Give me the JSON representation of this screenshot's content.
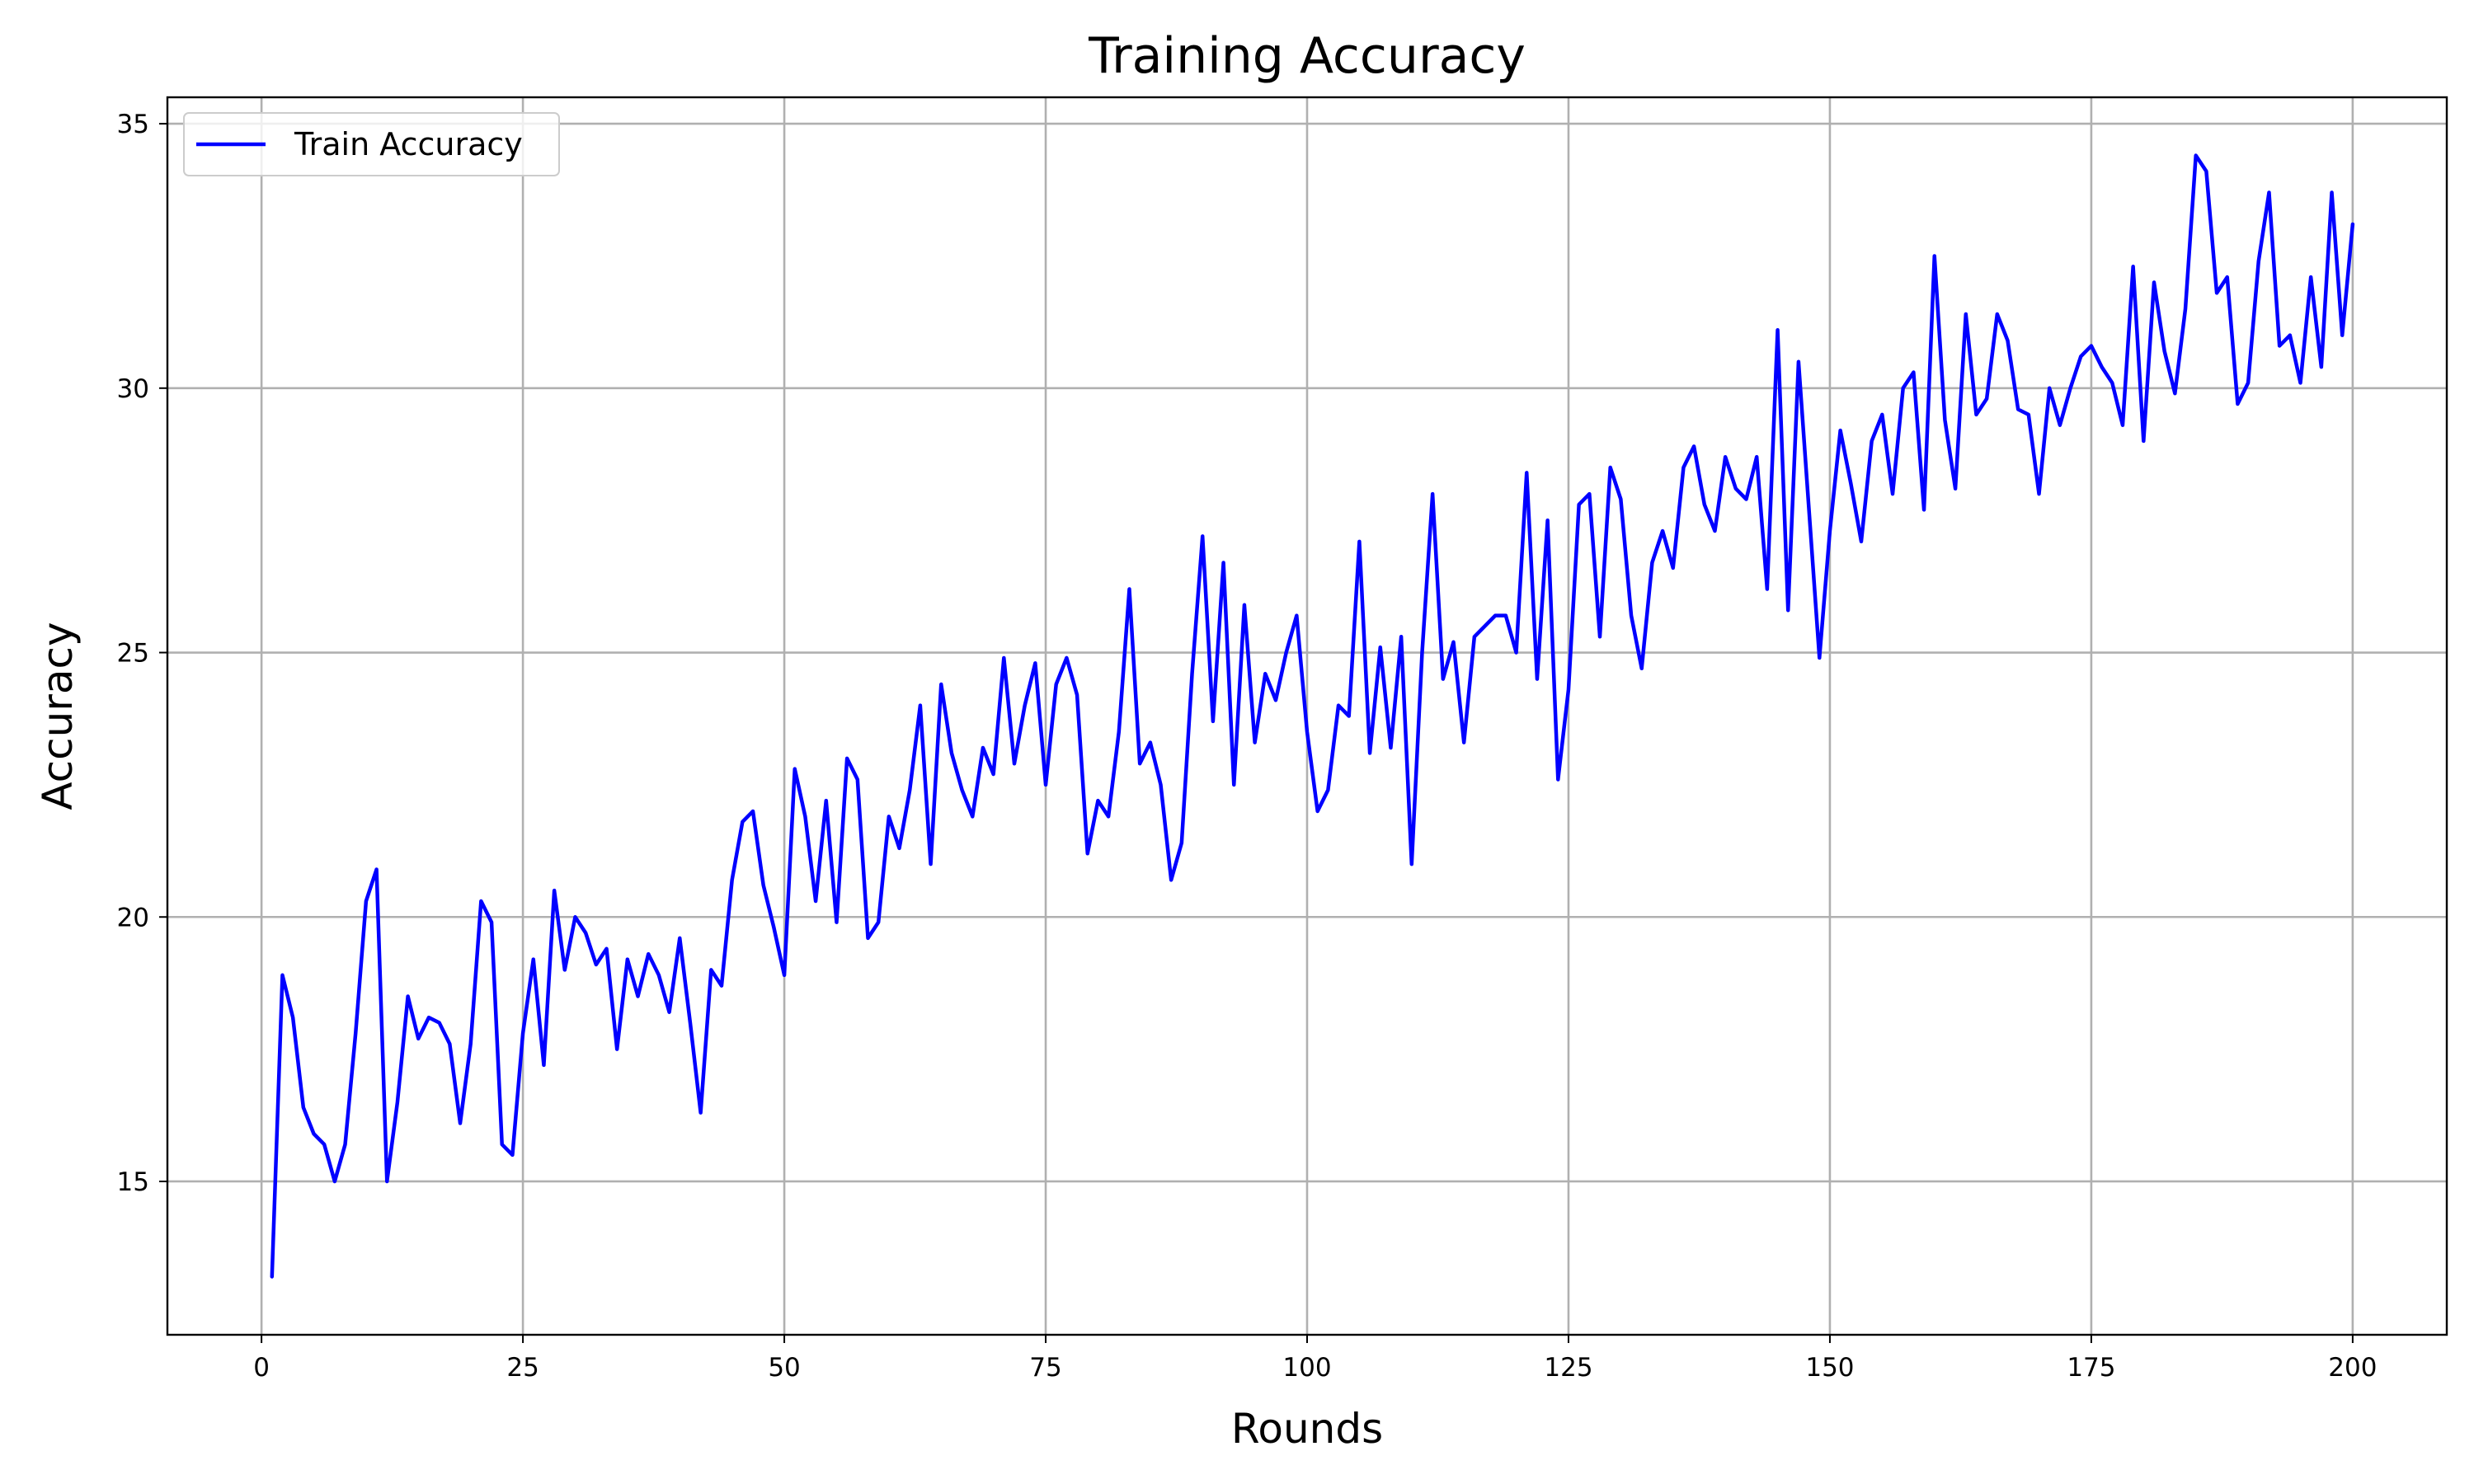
{
  "chart_data": {
    "type": "line",
    "title": "Training Accuracy",
    "xlabel": "Rounds",
    "ylabel": "Accuracy",
    "xlim": [
      -9,
      209
    ],
    "ylim": [
      12.1,
      35.5
    ],
    "xticks": [
      0,
      25,
      50,
      75,
      100,
      125,
      150,
      175,
      200
    ],
    "yticks": [
      15,
      20,
      25,
      30,
      35
    ],
    "grid": true,
    "legend_position": "upper-left",
    "series": [
      {
        "name": "Train Accuracy",
        "color": "#0000ff",
        "x": [
          1,
          2,
          3,
          4,
          5,
          6,
          7,
          8,
          9,
          10,
          11,
          12,
          13,
          14,
          15,
          16,
          17,
          18,
          19,
          20,
          21,
          22,
          23,
          24,
          25,
          26,
          27,
          28,
          29,
          30,
          31,
          32,
          33,
          34,
          35,
          36,
          37,
          38,
          39,
          40,
          41,
          42,
          43,
          44,
          45,
          46,
          47,
          48,
          49,
          50,
          51,
          52,
          53,
          54,
          55,
          56,
          57,
          58,
          59,
          60,
          61,
          62,
          63,
          64,
          65,
          66,
          67,
          68,
          69,
          70,
          71,
          72,
          73,
          74,
          75,
          76,
          77,
          78,
          79,
          80,
          81,
          82,
          83,
          84,
          85,
          86,
          87,
          88,
          89,
          90,
          91,
          92,
          93,
          94,
          95,
          96,
          97,
          98,
          99,
          100,
          101,
          102,
          103,
          104,
          105,
          106,
          107,
          108,
          109,
          110,
          111,
          112,
          113,
          114,
          115,
          116,
          117,
          118,
          119,
          120,
          121,
          122,
          123,
          124,
          125,
          126,
          127,
          128,
          129,
          130,
          131,
          132,
          133,
          134,
          135,
          136,
          137,
          138,
          139,
          140,
          141,
          142,
          143,
          144,
          145,
          146,
          147,
          148,
          149,
          150,
          151,
          152,
          153,
          154,
          155,
          156,
          157,
          158,
          159,
          160,
          161,
          162,
          163,
          164,
          165,
          166,
          167,
          168,
          169,
          170,
          171,
          172,
          173,
          174,
          175,
          176,
          177,
          178,
          179,
          180,
          181,
          182,
          183,
          184,
          185,
          186,
          187,
          188,
          189,
          190,
          191,
          192,
          193,
          194,
          195,
          196,
          197,
          198,
          199,
          200
        ],
        "y": [
          13.2,
          18.9,
          18.1,
          16.4,
          15.9,
          15.7,
          15.0,
          15.7,
          17.8,
          20.3,
          20.9,
          15.0,
          16.5,
          18.5,
          17.7,
          18.1,
          18.0,
          17.6,
          16.1,
          17.6,
          20.3,
          19.9,
          15.7,
          15.5,
          17.8,
          19.2,
          17.2,
          20.5,
          19.0,
          20.0,
          19.7,
          19.1,
          19.4,
          17.5,
          19.2,
          18.5,
          19.3,
          18.9,
          18.2,
          19.6,
          18.0,
          16.3,
          19.0,
          18.7,
          20.7,
          21.8,
          22.0,
          20.6,
          19.8,
          18.9,
          22.8,
          21.9,
          20.3,
          22.2,
          19.9,
          23.0,
          22.6,
          19.6,
          19.9,
          21.9,
          21.3,
          22.4,
          24.0,
          21.0,
          24.4,
          23.1,
          22.4,
          21.9,
          23.2,
          22.7,
          24.9,
          22.9,
          24.0,
          24.8,
          22.5,
          24.4,
          24.9,
          24.2,
          21.2,
          22.2,
          21.9,
          23.5,
          26.2,
          22.9,
          23.3,
          22.5,
          20.7,
          21.4,
          24.6,
          27.2,
          23.7,
          26.7,
          22.5,
          25.9,
          23.3,
          24.6,
          24.1,
          25.0,
          25.7,
          23.5,
          22.0,
          22.4,
          24.0,
          23.8,
          27.1,
          23.1,
          25.1,
          23.2,
          25.3,
          21.0,
          25.0,
          28.0,
          24.5,
          25.2,
          23.3,
          25.3,
          25.5,
          25.7,
          25.7,
          25.0,
          28.4,
          24.5,
          27.5,
          22.6,
          24.3,
          27.8,
          28.0,
          25.3,
          28.5,
          27.9,
          25.7,
          24.7,
          26.7,
          27.3,
          26.6,
          28.5,
          28.9,
          27.8,
          27.3,
          28.7,
          28.1,
          27.9,
          28.7,
          26.2,
          31.1,
          25.8,
          30.5,
          27.7,
          24.9,
          27.3,
          29.2,
          28.2,
          27.1,
          29.0,
          29.5,
          28.0,
          30.0,
          30.3,
          27.7,
          32.5,
          29.4,
          28.1,
          31.4,
          29.5,
          29.8,
          31.4,
          30.9,
          29.6,
          29.5,
          28.0,
          30.0,
          29.3,
          30.0,
          30.6,
          30.8,
          30.4,
          30.1,
          29.3,
          32.3,
          29.0,
          32.0,
          30.7,
          29.9,
          31.5,
          34.4,
          34.1,
          31.8,
          32.1,
          29.7,
          30.1,
          32.4,
          33.7,
          30.8,
          31.0,
          30.1,
          32.1,
          30.4,
          33.7,
          31.0,
          33.1
        ]
      }
    ]
  }
}
